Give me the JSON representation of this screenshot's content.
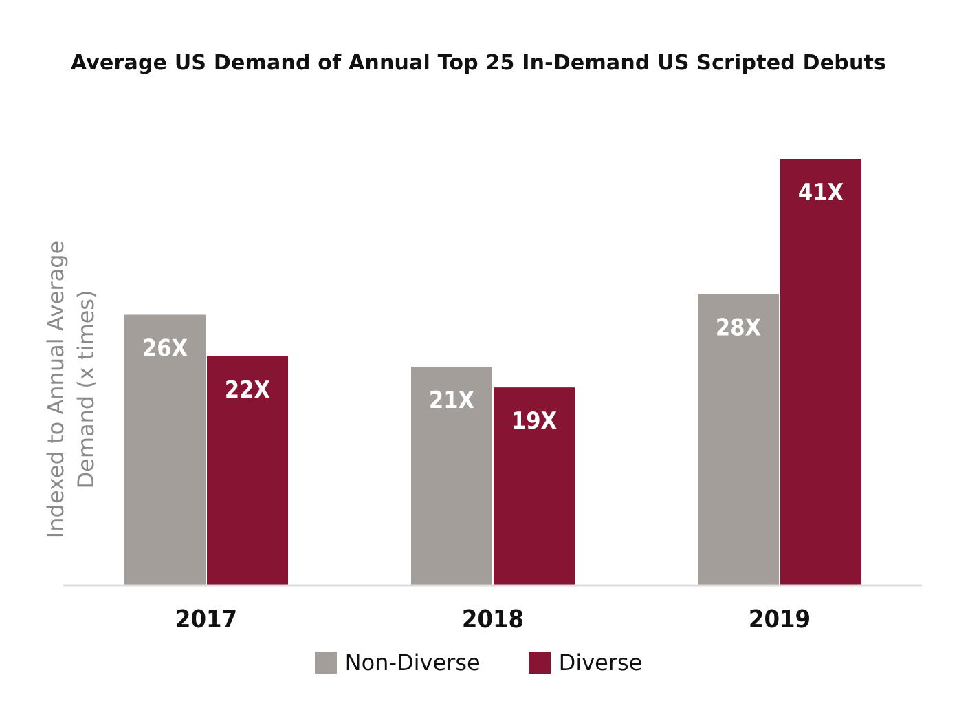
{
  "chart_data": {
    "type": "bar",
    "title": "Average US Demand of Annual Top 25 In-Demand US Scripted Debuts",
    "xlabel": "",
    "ylabel": "Indexed to Annual Average Demand (x times)",
    "ylabel_lines": [
      "Indexed to Annual Average",
      "Demand (x times)"
    ],
    "categories": [
      "2017",
      "2018",
      "2019"
    ],
    "series": [
      {
        "name": "Non-Diverse",
        "values": [
          26,
          21,
          28
        ],
        "labels": [
          "26X",
          "21X",
          "28X"
        ],
        "color": "#a39e9a"
      },
      {
        "name": "Diverse",
        "values": [
          22,
          19,
          41
        ],
        "labels": [
          "22X",
          "19X",
          "41X"
        ],
        "color": "#861432"
      }
    ],
    "ylim": [
      0,
      41
    ],
    "grid": false,
    "legend_position": "bottom"
  }
}
